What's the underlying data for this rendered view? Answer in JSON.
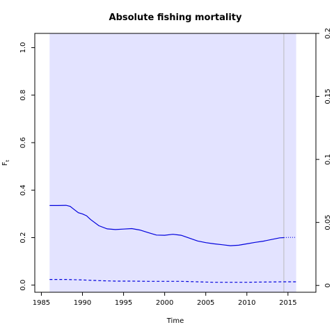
{
  "chart_data": {
    "type": "line",
    "title": "Absolute fishing mortality",
    "xlabel": "Time",
    "ylabel": "F",
    "ylabel_subscript": "t",
    "xlim": [
      1984.2,
      2018.4
    ],
    "ylim": [
      -0.03,
      1.06
    ],
    "ylim_right": [
      -0.0054,
      0.2
    ],
    "x_ticks": [
      1985,
      1990,
      1995,
      2000,
      2005,
      2010,
      2015
    ],
    "x_tick_labels": [
      "1985",
      "1990",
      "1995",
      "2000",
      "2005",
      "2010",
      "2015"
    ],
    "y_ticks": [
      0.0,
      0.2,
      0.4,
      0.6,
      0.8,
      1.0
    ],
    "y_tick_labels": [
      "0.0",
      "0.2",
      "0.4",
      "0.6",
      "0.8",
      "1.0"
    ],
    "y_right_ticks": [
      0,
      0.05,
      0.1,
      0.15,
      0.2
    ],
    "y_right_tick_labels": [
      "0",
      "0.05",
      "0.1",
      "0.15",
      "0.2"
    ],
    "band": {
      "x_start": 1986,
      "x_end": 2016,
      "y_low": -0.03,
      "y_high": 1.06,
      "color": "#e3e3ff"
    },
    "vline": {
      "x": 2014.5,
      "color": "#bbbbbb"
    },
    "grid": false,
    "series": [
      {
        "style": "solid",
        "color": "#0000dd",
        "x": [
          1986,
          1987,
          1988,
          1988.5,
          1989,
          1989.5,
          1990,
          1990.5,
          1991,
          1992,
          1993,
          1994,
          1995,
          1996,
          1997,
          1998,
          1999,
          2000,
          2001,
          2002,
          2003,
          2004,
          2005,
          2006,
          2007,
          2008,
          2009,
          2010,
          2011,
          2012,
          2013,
          2014,
          2014.5
        ],
        "y": [
          0.335,
          0.335,
          0.336,
          0.332,
          0.318,
          0.305,
          0.3,
          0.292,
          0.276,
          0.25,
          0.237,
          0.234,
          0.236,
          0.238,
          0.232,
          0.221,
          0.211,
          0.21,
          0.214,
          0.21,
          0.198,
          0.186,
          0.179,
          0.174,
          0.17,
          0.166,
          0.168,
          0.174,
          0.18,
          0.185,
          0.192,
          0.199,
          0.2
        ]
      },
      {
        "style": "dotted",
        "color": "#0000dd",
        "x": [
          2014.5,
          2015,
          2015.5,
          2016
        ],
        "y": [
          0.2,
          0.201,
          0.201,
          0.201
        ]
      },
      {
        "style": "dashed",
        "color": "#0000dd",
        "x": [
          1986,
          1988,
          1990,
          1992,
          1994,
          1996,
          1998,
          2000,
          2002,
          2004,
          2006,
          2008,
          2010,
          2012,
          2014.5,
          2016
        ],
        "y": [
          0.024,
          0.024,
          0.022,
          0.019,
          0.017,
          0.017,
          0.016,
          0.016,
          0.016,
          0.014,
          0.012,
          0.012,
          0.012,
          0.013,
          0.014,
          0.014
        ]
      }
    ]
  }
}
